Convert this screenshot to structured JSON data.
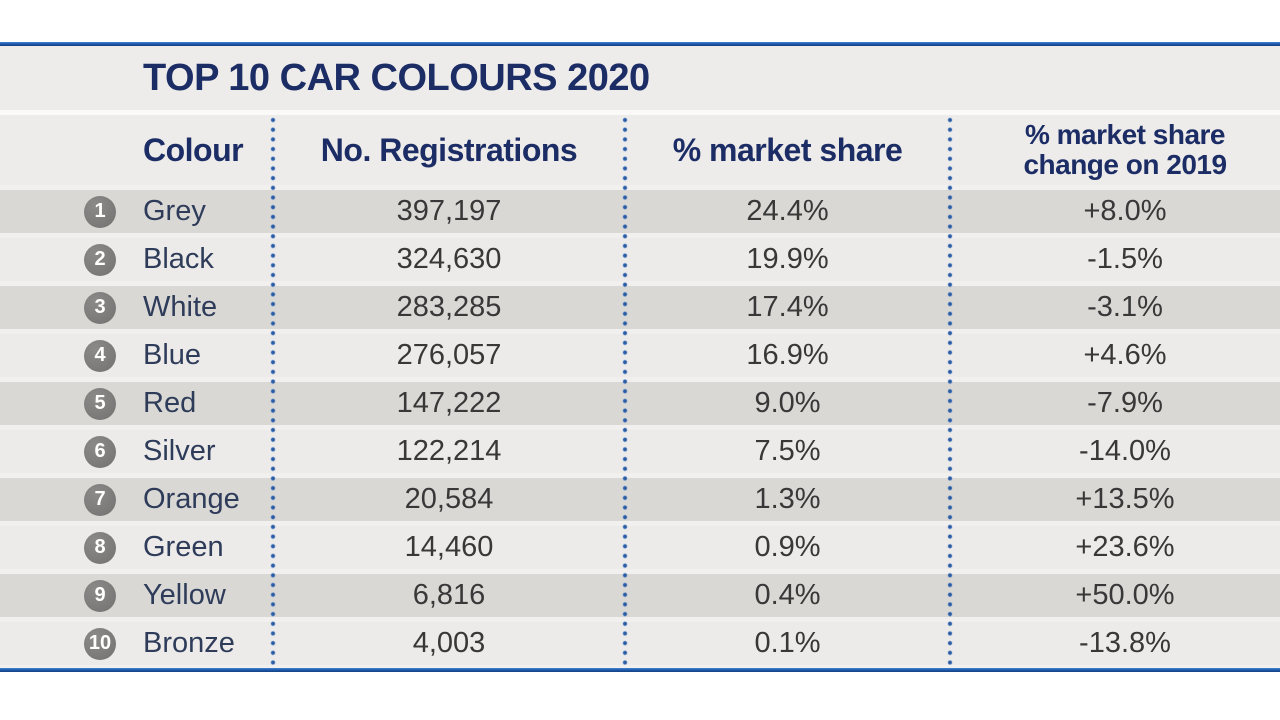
{
  "page": {
    "title": "TOP 10 CAR COLOURS 2020"
  },
  "table": {
    "headers": [
      {
        "label": "Colour"
      },
      {
        "label": "No. Registrations"
      },
      {
        "label": "% market share"
      },
      {
        "label": "% market share",
        "label2": "change on 2019"
      }
    ],
    "rows": [
      {
        "rank": "1",
        "colour": "Grey",
        "registrations": "397,197",
        "share": "24.4%",
        "change": "+8.0%"
      },
      {
        "rank": "2",
        "colour": "Black",
        "registrations": "324,630",
        "share": "19.9%",
        "change": "-1.5%"
      },
      {
        "rank": "3",
        "colour": "White",
        "registrations": "283,285",
        "share": "17.4%",
        "change": "-3.1%"
      },
      {
        "rank": "4",
        "colour": "Blue",
        "registrations": "276,057",
        "share": "16.9%",
        "change": "+4.6%"
      },
      {
        "rank": "5",
        "colour": "Red",
        "registrations": "147,222",
        "share": "9.0%",
        "change": "-7.9%"
      },
      {
        "rank": "6",
        "colour": "Silver",
        "registrations": "122,214",
        "share": "7.5%",
        "change": "-14.0%"
      },
      {
        "rank": "7",
        "colour": "Orange",
        "registrations": "20,584",
        "share": "1.3%",
        "change": "+13.5%"
      },
      {
        "rank": "8",
        "colour": "Green",
        "registrations": "14,460",
        "share": "0.9%",
        "change": "+23.6%"
      },
      {
        "rank": "9",
        "colour": "Yellow",
        "registrations": "6,816",
        "share": "0.4%",
        "change": "+50.0%"
      },
      {
        "rank": "10",
        "colour": "Bronze",
        "registrations": "4,003",
        "share": "0.1%",
        "change": "-13.8%"
      }
    ]
  },
  "chart_data": {
    "type": "table",
    "title": "TOP 10 CAR COLOURS 2020",
    "columns": [
      "Colour",
      "No. Registrations",
      "% market share",
      "% market share change on 2019"
    ],
    "rows": [
      [
        "Grey",
        397197,
        24.4,
        8.0
      ],
      [
        "Black",
        324630,
        19.9,
        -1.5
      ],
      [
        "White",
        283285,
        17.4,
        -3.1
      ],
      [
        "Blue",
        276057,
        16.9,
        4.6
      ],
      [
        "Red",
        147222,
        9.0,
        -7.9
      ],
      [
        "Silver",
        122214,
        7.5,
        -14.0
      ],
      [
        "Orange",
        20584,
        1.3,
        13.5
      ],
      [
        "Green",
        14460,
        0.9,
        23.6
      ],
      [
        "Yellow",
        6816,
        0.4,
        50.0
      ],
      [
        "Bronze",
        4003,
        0.1,
        -13.8
      ]
    ],
    "layout": {
      "row_striping": true,
      "rank_badges": "grey circles with white numbers",
      "column_separators": "blue dotted vertical lines"
    }
  },
  "colors": {
    "navy": "#1c2d66",
    "blue-line": "#1d5cb0",
    "board-bg": "#f1f0ee",
    "band-bg": "#edecea",
    "stripe-dark": "#d9d8d5",
    "stripe-light": "#ecebe9",
    "name-color": "#2e3c5a",
    "num-color": "#383838",
    "circle-bg": "#7b7a79",
    "dot-color": "#2b5da6"
  }
}
